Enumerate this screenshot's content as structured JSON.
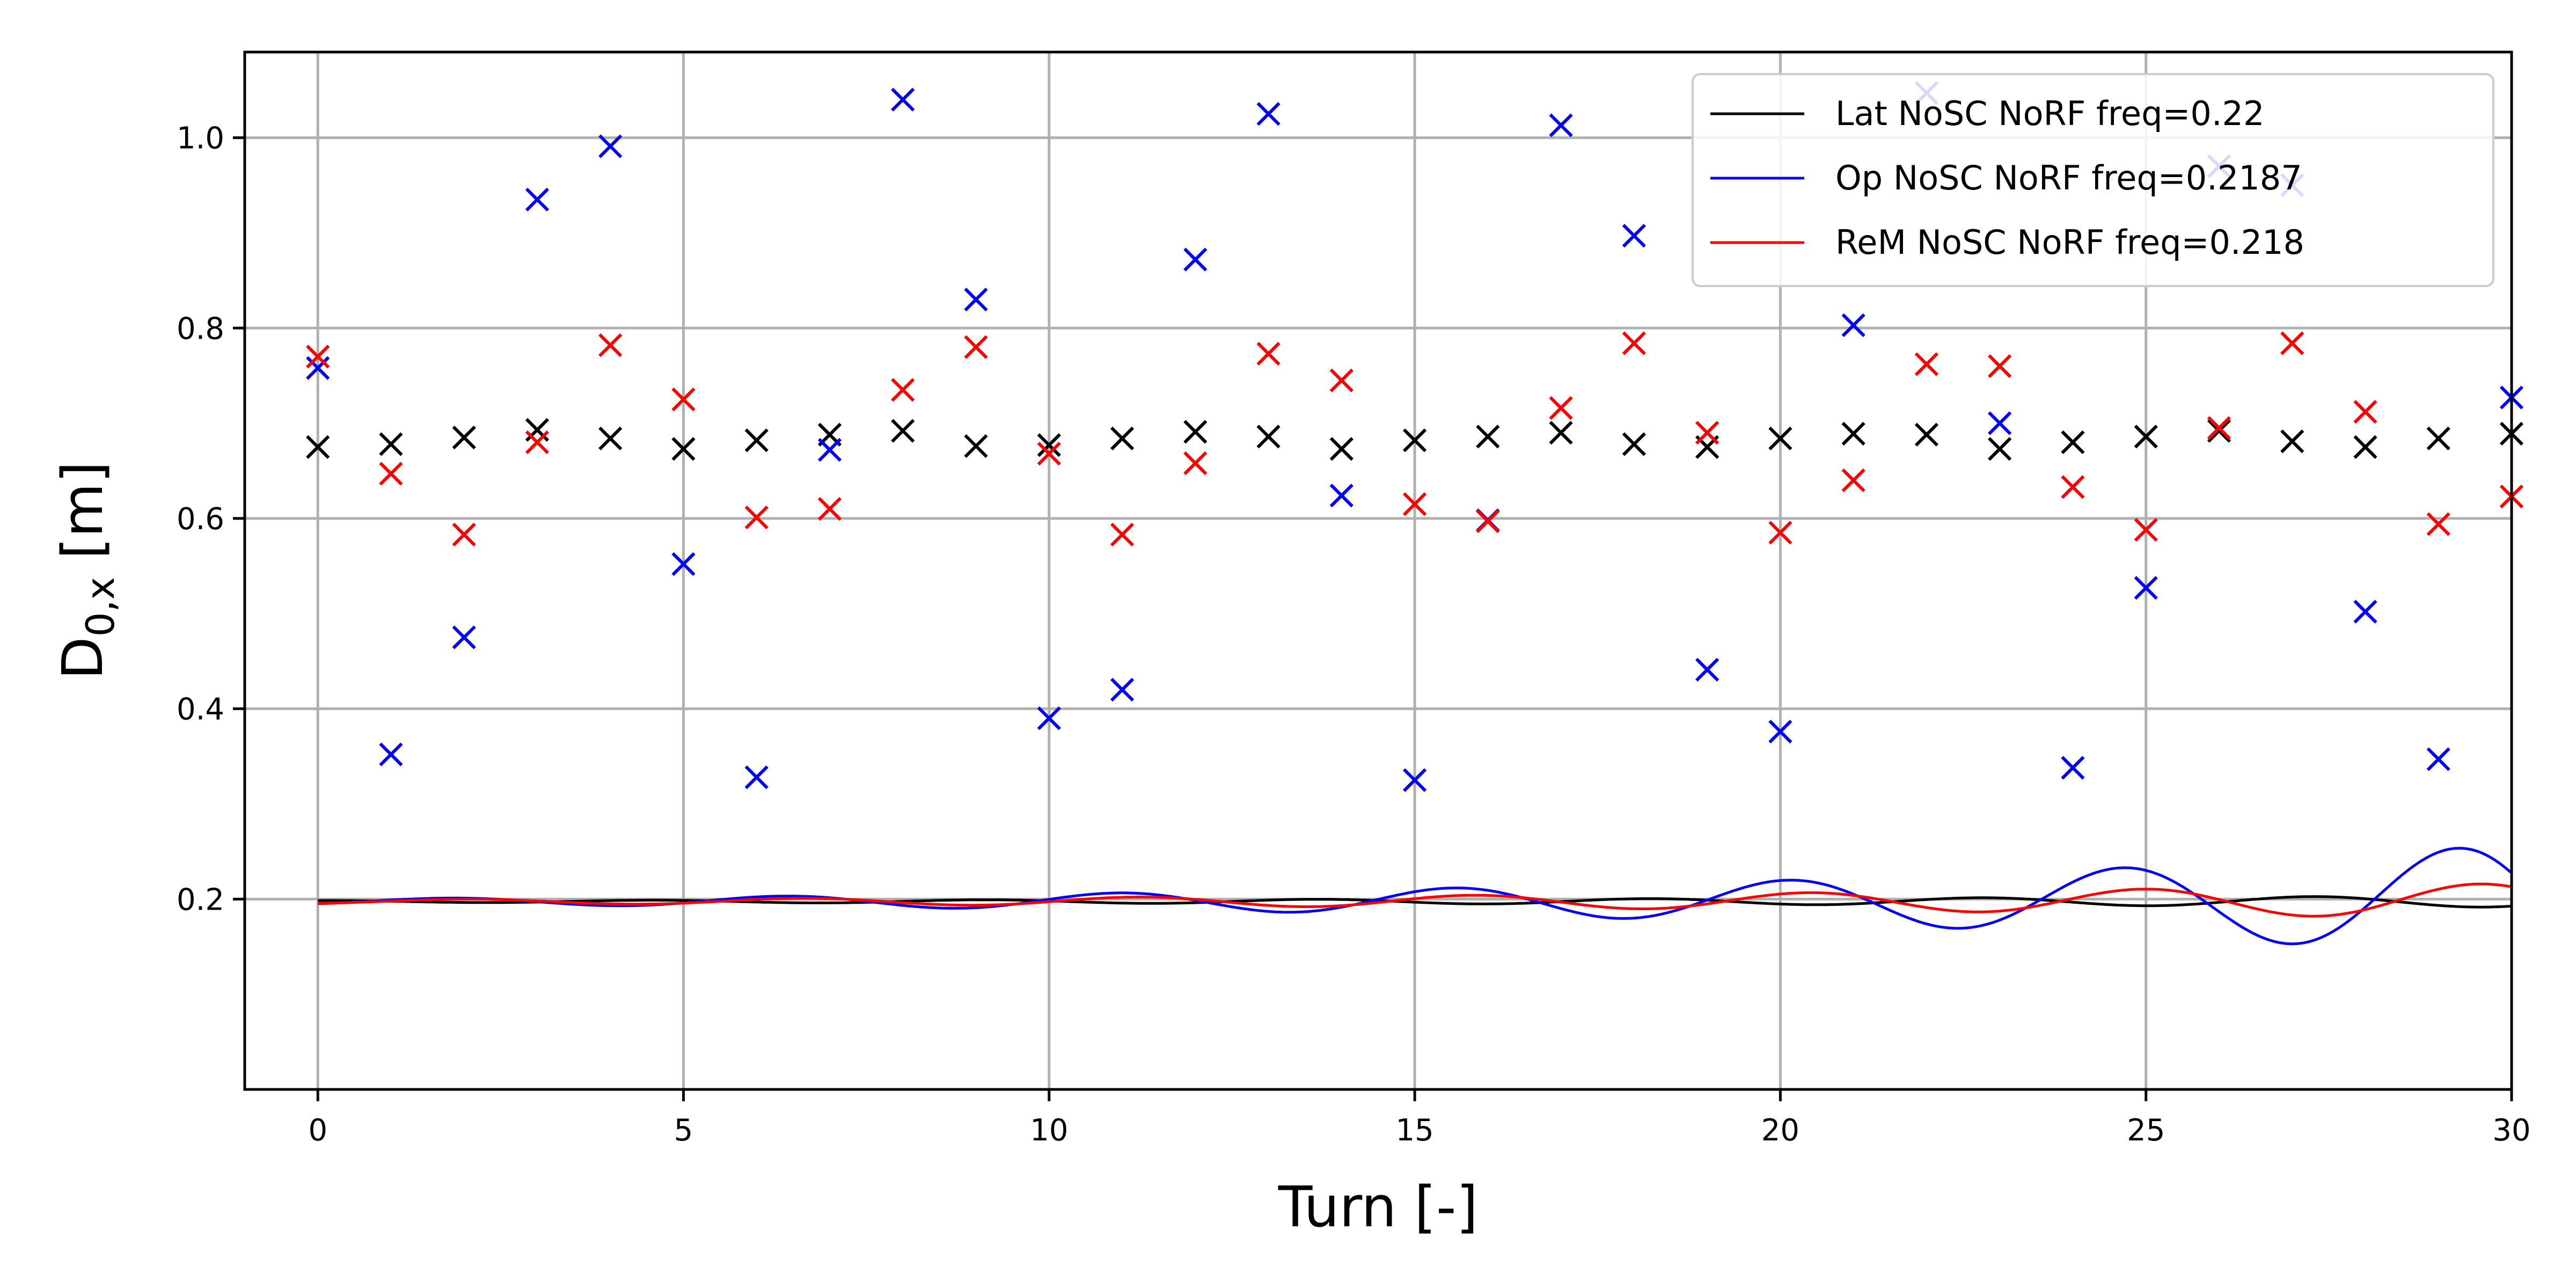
{
  "chart_data": {
    "type": "line",
    "xlabel": "Turn [-]",
    "ylabel_main": "D",
    "ylabel_sub": "0,x",
    "ylabel_unit": " [m]",
    "xlim": [
      -1,
      30
    ],
    "ylim": [
      0.0,
      1.09
    ],
    "xticks": [
      0,
      5,
      10,
      15,
      20,
      25,
      30
    ],
    "yticks": [
      0.2,
      0.4,
      0.6,
      0.8,
      1.0
    ],
    "xtick_labels": [
      "0",
      "5",
      "10",
      "15",
      "20",
      "25",
      "30"
    ],
    "ytick_labels": [
      "0.2",
      "0.4",
      "0.6",
      "0.8",
      "1.0"
    ],
    "grid": true,
    "legend_position": "top-right",
    "series": [
      {
        "name": "Lat NoSC NoRF freq=0.22",
        "color": "#000000",
        "marker_x": [
          0,
          1,
          2,
          3,
          4,
          5,
          6,
          7,
          8,
          9,
          10,
          11,
          12,
          13,
          14,
          15,
          16,
          17,
          18,
          19,
          20,
          21,
          22,
          23,
          24,
          25,
          26,
          27,
          28,
          29,
          30
        ],
        "marker_y": [
          0.675,
          0.678,
          0.685,
          0.693,
          0.684,
          0.673,
          0.682,
          0.688,
          0.692,
          0.676,
          0.677,
          0.684,
          0.691,
          0.686,
          0.673,
          0.682,
          0.686,
          0.69,
          0.678,
          0.675,
          0.684,
          0.689,
          0.688,
          0.673,
          0.68,
          0.686,
          0.692,
          0.681,
          0.675,
          0.684,
          0.689
        ],
        "curve": {
          "base": 0.1975,
          "amp0": 0.001,
          "growth": 0.06,
          "omega": 1.3823,
          "phase": 0.0
        }
      },
      {
        "name": "Op NoSC NoRF freq=0.2187",
        "color": "#0000ff",
        "marker_x": [
          0,
          1,
          2,
          3,
          4,
          5,
          6,
          7,
          8,
          9,
          10,
          11,
          12,
          13,
          14,
          15,
          16,
          17,
          18,
          19,
          20,
          21,
          22,
          23,
          24,
          25,
          26,
          27,
          28,
          29,
          30
        ],
        "marker_y": [
          0.758,
          0.352,
          0.475,
          0.935,
          0.991,
          0.552,
          0.328,
          0.672,
          1.04,
          0.83,
          0.39,
          0.42,
          0.872,
          1.025,
          0.624,
          0.325,
          0.598,
          1.013,
          0.897,
          0.441,
          0.376,
          0.803,
          1.047,
          0.7,
          0.338,
          0.527,
          0.97,
          0.95,
          0.502,
          0.347,
          0.727
        ],
        "curve": {
          "base": 0.1975,
          "amp0": 0.003,
          "growth": 0.1,
          "omega": 1.3741,
          "phase": -2.47
        }
      },
      {
        "name": "ReM NoSC NoRF freq=0.218",
        "color": "#ff0000",
        "marker_x": [
          0,
          1,
          2,
          3,
          4,
          5,
          6,
          7,
          8,
          9,
          10,
          11,
          12,
          13,
          14,
          15,
          16,
          17,
          18,
          19,
          20,
          21,
          22,
          23,
          24,
          25,
          26,
          27,
          28,
          29,
          30
        ],
        "marker_y": [
          0.77,
          0.647,
          0.583,
          0.68,
          0.782,
          0.725,
          0.601,
          0.61,
          0.735,
          0.78,
          0.668,
          0.583,
          0.658,
          0.773,
          0.745,
          0.615,
          0.597,
          0.716,
          0.784,
          0.69,
          0.585,
          0.64,
          0.762,
          0.76,
          0.633,
          0.588,
          0.695,
          0.784,
          0.712,
          0.594,
          0.623
        ],
        "curve": {
          "base": 0.1975,
          "amp0": 0.002,
          "growth": 0.075,
          "omega": 1.3697,
          "phase": -2.77
        }
      }
    ]
  }
}
